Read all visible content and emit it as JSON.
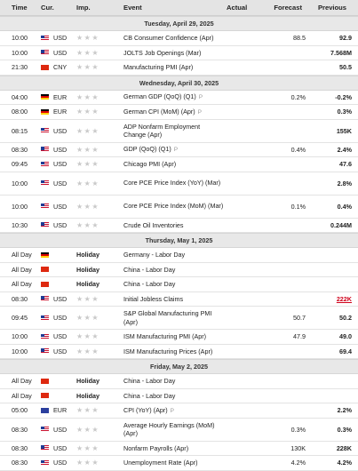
{
  "header": {
    "time": "Time",
    "cur": "Cur.",
    "imp": "Imp.",
    "event": "Event",
    "actual": "Actual",
    "forecast": "Forecast",
    "previous": "Previous"
  },
  "icons": {
    "star": "★",
    "preliminary": "P"
  },
  "colors": {
    "header_bg": "#e4e4e4",
    "date_bg": "#e8e8e8",
    "star": "#c9c9c9",
    "negative": "#d0021b"
  },
  "sections": [
    {
      "date": "Tuesday, April 29, 2025",
      "rows": [
        {
          "time": "10:00",
          "flag": "usd",
          "cur": "USD",
          "imp": "stars",
          "event": "CB Consumer Confidence (Apr)",
          "actual": "",
          "forecast": "88.5",
          "previous": "92.9"
        },
        {
          "time": "10:00",
          "flag": "usd",
          "cur": "USD",
          "imp": "stars",
          "event": "JOLTS Job Openings (Mar)",
          "actual": "",
          "forecast": "",
          "previous": "7.568M"
        },
        {
          "time": "21:30",
          "flag": "cny",
          "cur": "CNY",
          "imp": "stars",
          "event": "Manufacturing PMI (Apr)",
          "actual": "",
          "forecast": "",
          "previous": "50.5"
        }
      ]
    },
    {
      "date": "Wednesday, April 30, 2025",
      "rows": [
        {
          "time": "04:00",
          "flag": "eur-de",
          "cur": "EUR",
          "imp": "stars",
          "event": "German GDP (QoQ) (Q1)",
          "prelim": true,
          "actual": "",
          "forecast": "0.2%",
          "previous": "-0.2%"
        },
        {
          "time": "08:00",
          "flag": "eur-de",
          "cur": "EUR",
          "imp": "stars",
          "event": "German CPI (MoM) (Apr)",
          "prelim": true,
          "actual": "",
          "forecast": "",
          "previous": "0.3%"
        },
        {
          "time": "08:15",
          "flag": "usd",
          "cur": "USD",
          "imp": "stars",
          "event": "ADP Nonfarm Employment Change (Apr)",
          "tall": true,
          "actual": "",
          "forecast": "",
          "previous": "155K"
        },
        {
          "time": "08:30",
          "flag": "usd",
          "cur": "USD",
          "imp": "stars",
          "event": "GDP (QoQ) (Q1)",
          "prelim": true,
          "actual": "",
          "forecast": "0.4%",
          "previous": "2.4%"
        },
        {
          "time": "09:45",
          "flag": "usd",
          "cur": "USD",
          "imp": "stars",
          "event": "Chicago PMI (Apr)",
          "actual": "",
          "forecast": "",
          "previous": "47.6"
        },
        {
          "time": "10:00",
          "flag": "usd",
          "cur": "USD",
          "imp": "stars",
          "event": "Core PCE Price Index (YoY) (Mar)",
          "tall": true,
          "actual": "",
          "forecast": "",
          "previous": "2.8%"
        },
        {
          "time": "10:00",
          "flag": "usd",
          "cur": "USD",
          "imp": "stars",
          "event": "Core PCE Price Index (MoM) (Mar)",
          "tall": true,
          "actual": "",
          "forecast": "0.1%",
          "previous": "0.4%"
        },
        {
          "time": "10:30",
          "flag": "usd",
          "cur": "USD",
          "imp": "stars",
          "event": "Crude Oil Inventories",
          "actual": "",
          "forecast": "",
          "previous": "0.244M"
        }
      ]
    },
    {
      "date": "Thursday, May 1, 2025",
      "rows": [
        {
          "time": "All Day",
          "flag": "eur-de",
          "cur": "",
          "imp": "Holiday",
          "event": "Germany - Labor Day",
          "actual": "",
          "forecast": "",
          "previous": ""
        },
        {
          "time": "All Day",
          "flag": "cny",
          "cur": "",
          "imp": "Holiday",
          "event": "China - Labor Day",
          "actual": "",
          "forecast": "",
          "previous": ""
        },
        {
          "time": "All Day",
          "flag": "cny",
          "cur": "",
          "imp": "Holiday",
          "event": "China - Labor Day",
          "actual": "",
          "forecast": "",
          "previous": ""
        },
        {
          "time": "08:30",
          "flag": "usd",
          "cur": "USD",
          "imp": "stars",
          "event": "Initial Jobless Claims",
          "actual": "",
          "forecast": "",
          "previous": "222K",
          "neg": true
        },
        {
          "time": "09:45",
          "flag": "usd",
          "cur": "USD",
          "imp": "stars",
          "event": "S&P Global Manufacturing PMI (Apr)",
          "tall": true,
          "actual": "",
          "forecast": "50.7",
          "previous": "50.2"
        },
        {
          "time": "10:00",
          "flag": "usd",
          "cur": "USD",
          "imp": "stars",
          "event": "ISM Manufacturing PMI (Apr)",
          "actual": "",
          "forecast": "47.9",
          "previous": "49.0"
        },
        {
          "time": "10:00",
          "flag": "usd",
          "cur": "USD",
          "imp": "stars",
          "event": "ISM Manufacturing Prices (Apr)",
          "actual": "",
          "forecast": "",
          "previous": "69.4"
        }
      ]
    },
    {
      "date": "Friday, May 2, 2025",
      "rows": [
        {
          "time": "All Day",
          "flag": "cny",
          "cur": "",
          "imp": "Holiday",
          "event": "China - Labor Day",
          "actual": "",
          "forecast": "",
          "previous": ""
        },
        {
          "time": "All Day",
          "flag": "cny",
          "cur": "",
          "imp": "Holiday",
          "event": "China - Labor Day",
          "actual": "",
          "forecast": "",
          "previous": ""
        },
        {
          "time": "05:00",
          "flag": "eu",
          "cur": "EUR",
          "imp": "stars",
          "event": "CPI (YoY) (Apr)",
          "prelim": true,
          "actual": "",
          "forecast": "",
          "previous": "2.2%"
        },
        {
          "time": "08:30",
          "flag": "usd",
          "cur": "USD",
          "imp": "stars",
          "event": "Average Hourly Earnings (MoM) (Apr)",
          "tall": true,
          "actual": "",
          "forecast": "0.3%",
          "previous": "0.3%"
        },
        {
          "time": "08:30",
          "flag": "usd",
          "cur": "USD",
          "imp": "stars",
          "event": "Nonfarm Payrolls (Apr)",
          "actual": "",
          "forecast": "130K",
          "previous": "228K"
        },
        {
          "time": "08:30",
          "flag": "usd",
          "cur": "USD",
          "imp": "stars",
          "event": "Unemployment Rate (Apr)",
          "actual": "",
          "forecast": "4.2%",
          "previous": "4.2%"
        }
      ]
    }
  ]
}
